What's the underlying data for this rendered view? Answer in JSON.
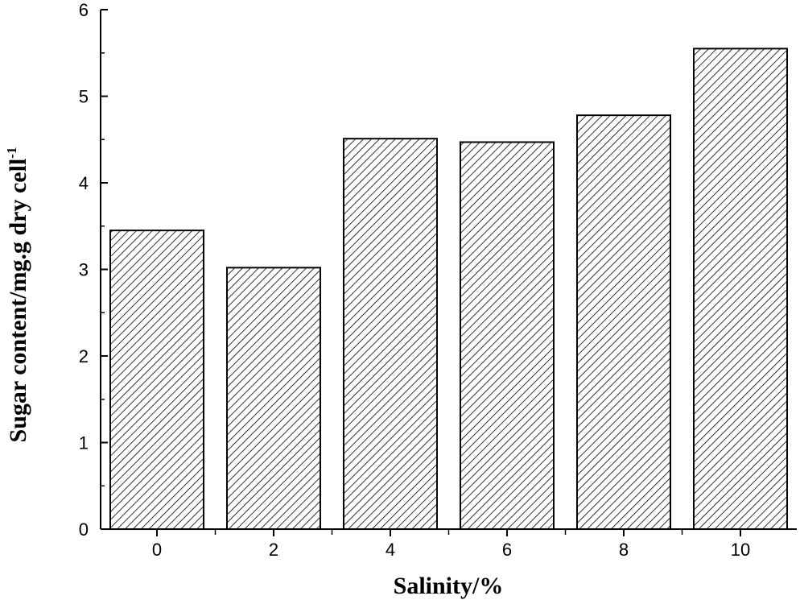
{
  "chart_data": {
    "type": "bar",
    "categories": [
      "0",
      "2",
      "4",
      "6",
      "8",
      "10"
    ],
    "values": [
      3.45,
      3.02,
      4.51,
      4.47,
      4.78,
      5.55
    ],
    "xlabel": "Salinity/%",
    "ylabel": "Sugar content/mg.g dry cell",
    "ylabel_superscript": "-1",
    "ylim": [
      0,
      6
    ],
    "yticks": [
      "0",
      "1",
      "2",
      "3",
      "4",
      "5",
      "6"
    ],
    "bar_fill": "hatched diagonal",
    "bar_color": "#000000",
    "grid": false,
    "legend": "none"
  }
}
